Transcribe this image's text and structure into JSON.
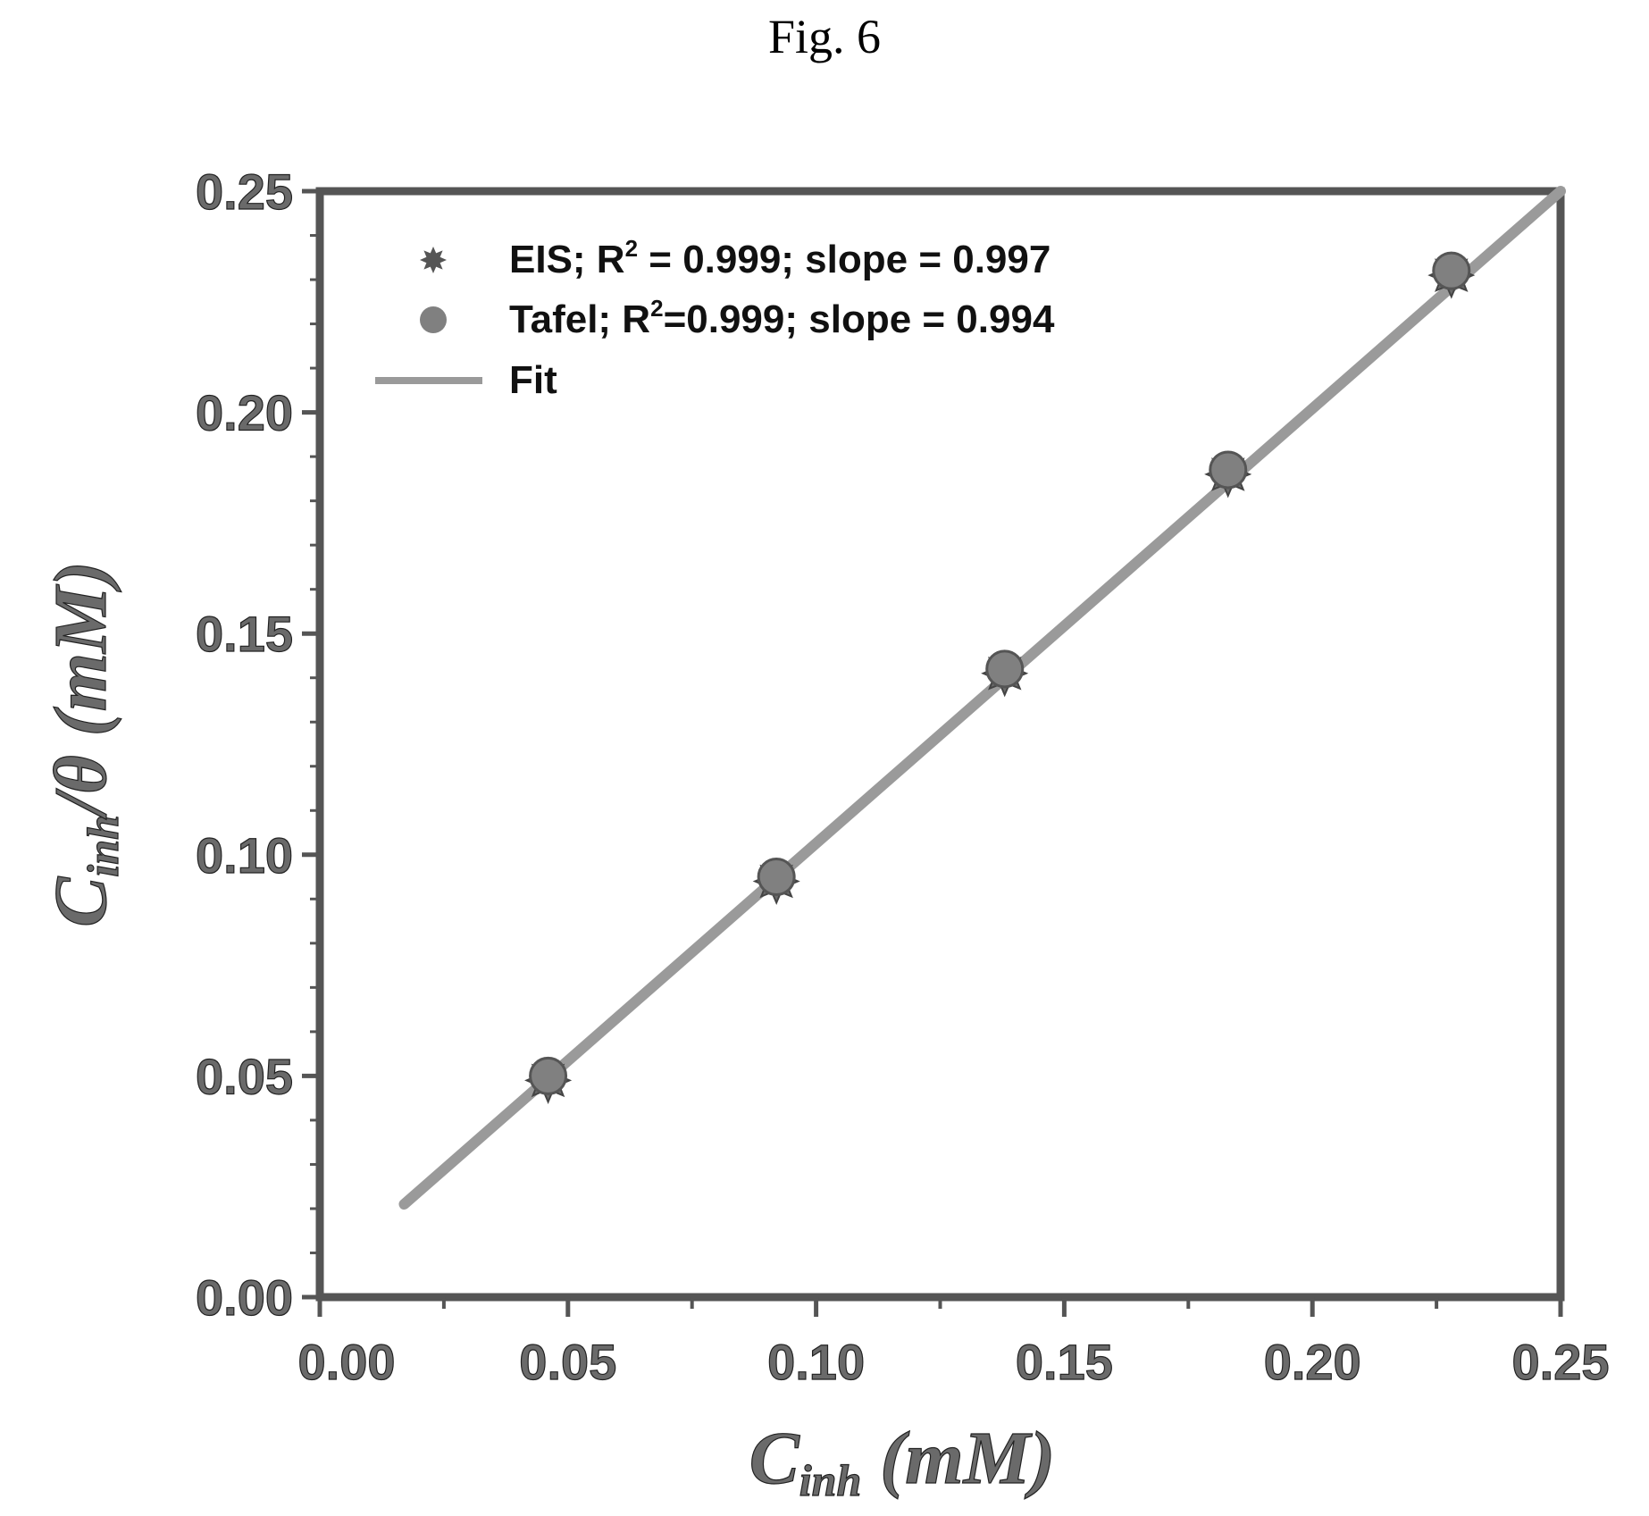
{
  "figure_label": "Fig. 6",
  "chart_data": {
    "type": "scatter",
    "xlabel": {
      "main": "C",
      "sub": "inh",
      "unit": " (mM)"
    },
    "ylabel": {
      "main": "C",
      "sub": "inh",
      "tail": "/θ (mM)"
    },
    "xlim": [
      0,
      0.25
    ],
    "ylim": [
      0,
      0.25
    ],
    "x_ticks": [
      "0.00",
      "0.05",
      "0.10",
      "0.15",
      "0.20",
      "0.25"
    ],
    "y_ticks": [
      "0.00",
      "0.05",
      "0.10",
      "0.15",
      "0.20",
      "0.25"
    ],
    "legend_position": "top-left",
    "series": [
      {
        "name": "EIS; R² = 0.999; slope = 0.997",
        "legend": {
          "pre": "EIS; R",
          "sup": "2",
          "post": " = 0.999; slope = 0.997"
        },
        "marker": "star",
        "x": [
          0.046,
          0.092,
          0.138,
          0.183,
          0.228
        ],
        "y": [
          0.049,
          0.094,
          0.141,
          0.186,
          0.231
        ]
      },
      {
        "name": "Tafel; R²=0.999; slope = 0.994",
        "legend": {
          "pre": "Tafel; R",
          "sup": "2",
          "post": "=0.999; slope = 0.994"
        },
        "marker": "circle",
        "x": [
          0.046,
          0.092,
          0.138,
          0.183,
          0.228
        ],
        "y": [
          0.05,
          0.095,
          0.142,
          0.187,
          0.232
        ]
      },
      {
        "name": "Fit",
        "legend": {
          "pre": "Fit",
          "sup": "",
          "post": ""
        },
        "marker": "line",
        "x": [
          0.017,
          0.25
        ],
        "y": [
          0.021,
          0.25
        ]
      }
    ],
    "colors": {
      "marker": "#808080",
      "line": "#9a9a9a",
      "frame": "#555555"
    }
  }
}
